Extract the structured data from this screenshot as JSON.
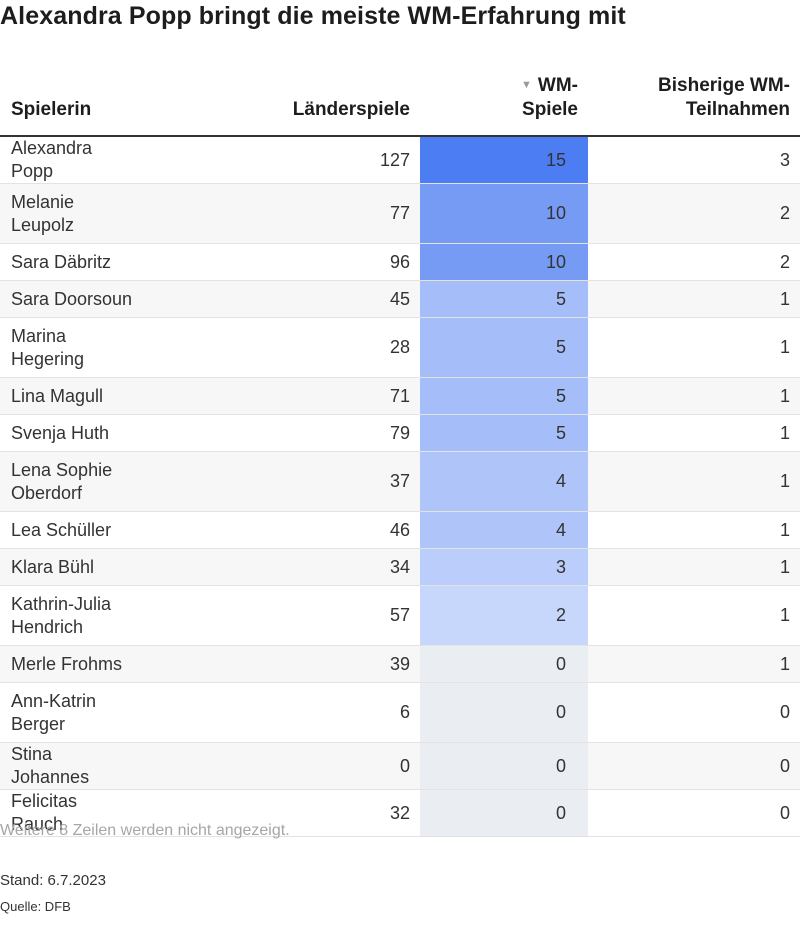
{
  "title": "Alexandra Popp bringt die meiste WM-Erfahrung mit",
  "table": {
    "columns": {
      "player": "Spielerin",
      "caps": "Länderspiele",
      "wm_games": "WM-\nSpiele",
      "tournaments": "Bisherige WM-\nTeilnahmen"
    },
    "sort_indicator": "▼",
    "rows": [
      {
        "player": "Alexandra Popp",
        "caps": "127",
        "wm_games": "15",
        "tournaments": "3"
      },
      {
        "player": "Melanie\nLeupolz",
        "caps": "77",
        "wm_games": "10",
        "tournaments": "2"
      },
      {
        "player": "Sara Däbritz",
        "caps": "96",
        "wm_games": "10",
        "tournaments": "2"
      },
      {
        "player": "Sara Doorsoun",
        "caps": "45",
        "wm_games": "5",
        "tournaments": "1"
      },
      {
        "player": "Marina\nHegering",
        "caps": "28",
        "wm_games": "5",
        "tournaments": "1"
      },
      {
        "player": "Lina Magull",
        "caps": "71",
        "wm_games": "5",
        "tournaments": "1"
      },
      {
        "player": "Svenja Huth",
        "caps": "79",
        "wm_games": "5",
        "tournaments": "1"
      },
      {
        "player": "Lena Sophie\nOberdorf",
        "caps": "37",
        "wm_games": "4",
        "tournaments": "1"
      },
      {
        "player": "Lea Schüller",
        "caps": "46",
        "wm_games": "4",
        "tournaments": "1"
      },
      {
        "player": "Klara Bühl",
        "caps": "34",
        "wm_games": "3",
        "tournaments": "1"
      },
      {
        "player": "Kathrin-Julia\nHendrich",
        "caps": "57",
        "wm_games": "2",
        "tournaments": "1"
      },
      {
        "player": "Merle Frohms",
        "caps": "39",
        "wm_games": "0",
        "tournaments": "1"
      },
      {
        "player": "Ann-Katrin\nBerger",
        "caps": "6",
        "wm_games": "0",
        "tournaments": "0"
      },
      {
        "player": "Stina Johannes",
        "caps": "0",
        "wm_games": "0",
        "tournaments": "0"
      },
      {
        "player": "Felicitas Rauch",
        "caps": "32",
        "wm_games": "0",
        "tournaments": "0"
      }
    ]
  },
  "chart_data": {
    "type": "table",
    "columns": [
      "Spielerin",
      "Länderspiele",
      "WM-Spiele",
      "Bisherige WM-Teilnahmen"
    ],
    "sorted_by": "WM-Spiele",
    "sort_direction": "descending",
    "heat_column": "WM-Spiele",
    "heat_range": [
      0,
      15
    ],
    "heat_colors": {
      "low": "#eaeef2",
      "high": "#4c7df2"
    }
  },
  "footer": {
    "note": "Weitere 8 Zeilen werden nicht angezeigt.",
    "stand": "Stand: 6.7.2023",
    "source": "Quelle: DFB"
  }
}
